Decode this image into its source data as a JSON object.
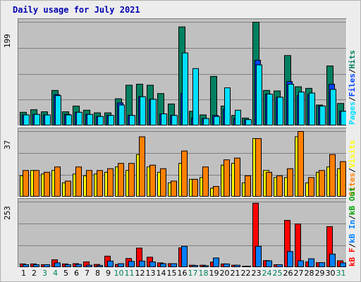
{
  "title": "Daily usage for July 2021",
  "panels": {
    "hits_files_pages": {
      "max_label": "199",
      "legend": {
        "hits": "Hits",
        "files": "Files",
        "pages": "Pages",
        "sep": "/"
      },
      "colors": {
        "hits": "#008060",
        "files": "#0040ff",
        "pages": "#00e0ff"
      }
    },
    "visits_sites": {
      "max_label": "37",
      "legend": {
        "visits": "Visits",
        "sites": "Sites",
        "sep": "/"
      },
      "colors": {
        "visits": "#ffff00",
        "sites": "#ff8000"
      }
    },
    "kbytes": {
      "max_label": "253",
      "legend": {
        "kb_out": "kB Out",
        "kb_in": "kB In",
        "kb_f": "kB F",
        "sep": "/"
      },
      "colors": {
        "kb_f": "#ff0000",
        "kb_in": "#0080ff"
      }
    }
  },
  "x_axis": {
    "days": [
      "1",
      "2",
      "3",
      "4",
      "5",
      "6",
      "7",
      "8",
      "9",
      "10",
      "11",
      "12",
      "13",
      "14",
      "15",
      "16",
      "17",
      "18",
      "19",
      "20",
      "21",
      "22",
      "23",
      "24",
      "25",
      "26",
      "27",
      "28",
      "29",
      "30",
      "31"
    ],
    "weekend_days": [
      3,
      4,
      10,
      11,
      17,
      18,
      24,
      25,
      31
    ],
    "colors": {
      "weekday": "#000000",
      "weekend": "#00805c"
    }
  },
  "chart_data": [
    {
      "type": "bar",
      "title": "",
      "ylim": [
        0,
        199
      ],
      "categories": [
        "1",
        "2",
        "3",
        "4",
        "5",
        "6",
        "7",
        "8",
        "9",
        "10",
        "11",
        "12",
        "13",
        "14",
        "15",
        "16",
        "17",
        "18",
        "19",
        "20",
        "21",
        "22",
        "23",
        "24",
        "25",
        "26",
        "27",
        "28",
        "29",
        "30",
        "31"
      ],
      "series": [
        {
          "name": "Hits",
          "values": [
            26,
            31,
            27,
            68,
            27,
            38,
            30,
            25,
            25,
            52,
            78,
            80,
            78,
            62,
            42,
            190,
            28,
            21,
            95,
            38,
            20,
            15,
            199,
            68,
            67,
            135,
            75,
            72,
            40,
            115,
            43
          ]
        },
        {
          "name": "Files",
          "values": [
            21,
            22,
            21,
            60,
            22,
            26,
            22,
            18,
            20,
            44,
            20,
            56,
            51,
            23,
            20,
            62,
            15,
            14,
            20,
            32,
            14,
            12,
            126,
            61,
            55,
            85,
            58,
            60,
            38,
            80,
            28
          ]
        },
        {
          "name": "Pages",
          "values": [
            21,
            22,
            21,
            58,
            21,
            26,
            22,
            18,
            20,
            40,
            20,
            56,
            51,
            23,
            20,
            140,
            110,
            14,
            18,
            73,
            30,
            12,
            117,
            61,
            55,
            80,
            65,
            63,
            38,
            70,
            28
          ]
        }
      ]
    },
    {
      "type": "bar",
      "title": "",
      "ylim": [
        0,
        37
      ],
      "categories": [
        "1",
        "2",
        "3",
        "4",
        "5",
        "6",
        "7",
        "8",
        "9",
        "10",
        "11",
        "12",
        "13",
        "14",
        "15",
        "16",
        "17",
        "18",
        "19",
        "20",
        "21",
        "22",
        "23",
        "24",
        "25",
        "26",
        "27",
        "28",
        "29",
        "30",
        "31"
      ],
      "series": [
        {
          "name": "Visits",
          "values": [
            12,
            15,
            13,
            15,
            8,
            13,
            12,
            13,
            14,
            17,
            15,
            24,
            17,
            14,
            8,
            19,
            10,
            11,
            5,
            18,
            19,
            8,
            33,
            15,
            11,
            11,
            34,
            8,
            14,
            17,
            16
          ]
        },
        {
          "name": "Sites",
          "values": [
            15,
            15,
            14,
            17,
            9,
            17,
            15,
            15,
            16,
            19,
            19,
            34,
            18,
            16,
            9,
            26,
            10,
            17,
            6,
            21,
            22,
            12,
            33,
            14,
            12,
            16,
            37,
            11,
            15,
            24,
            20
          ]
        }
      ]
    },
    {
      "type": "bar",
      "title": "",
      "ylim": [
        0,
        253
      ],
      "categories": [
        "1",
        "2",
        "3",
        "4",
        "5",
        "6",
        "7",
        "8",
        "9",
        "10",
        "11",
        "12",
        "13",
        "14",
        "15",
        "16",
        "17",
        "18",
        "19",
        "20",
        "21",
        "22",
        "23",
        "24",
        "25",
        "26",
        "27",
        "28",
        "29",
        "30",
        "31"
      ],
      "series": [
        {
          "name": "kB F",
          "values": [
            14,
            14,
            11,
            30,
            14,
            15,
            22,
            12,
            44,
            12,
            35,
            75,
            40,
            18,
            15,
            76,
            9,
            9,
            21,
            14,
            9,
            5,
            248,
            27,
            11,
            182,
            168,
            22,
            19,
            158,
            26
          ]
        },
        {
          "name": "kB In",
          "values": [
            11,
            11,
            11,
            18,
            11,
            12,
            9,
            8,
            25,
            15,
            24,
            25,
            22,
            15,
            15,
            82,
            8,
            7,
            37,
            14,
            9,
            5,
            82,
            26,
            11,
            62,
            26,
            34,
            19,
            52,
            18
          ]
        }
      ]
    }
  ]
}
